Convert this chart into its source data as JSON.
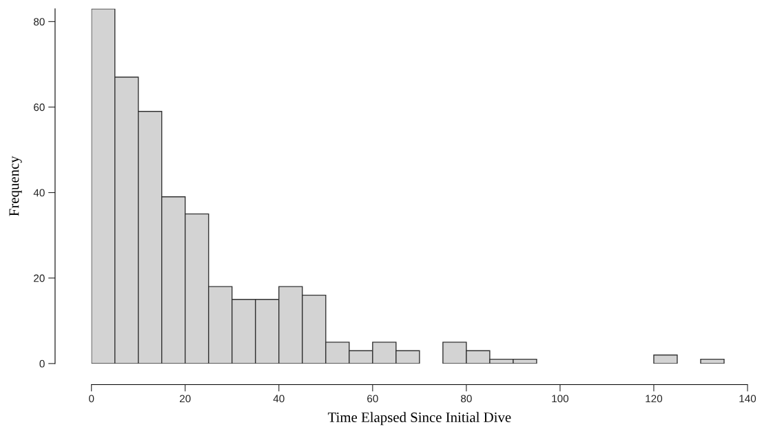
{
  "chart_data": {
    "type": "histogram",
    "xlabel": "Time Elapsed Since Initial Dive",
    "ylabel": "Frequency",
    "bins": [
      0,
      5,
      10,
      15,
      20,
      25,
      30,
      35,
      40,
      45,
      50,
      55,
      60,
      65,
      70,
      75,
      80,
      85,
      90,
      95,
      100,
      105,
      110,
      115,
      120,
      125,
      130,
      135
    ],
    "values": [
      83,
      67,
      59,
      39,
      35,
      18,
      15,
      15,
      18,
      16,
      5,
      3,
      5,
      3,
      0,
      5,
      3,
      1,
      1,
      0,
      0,
      0,
      0,
      0,
      2,
      0,
      1
    ],
    "color": "#d3d3d3",
    "xlim": [
      0,
      140
    ],
    "xticks": [
      0,
      20,
      40,
      60,
      80,
      100,
      120,
      140
    ],
    "ylim": [
      0,
      83
    ],
    "yticks": [
      0,
      20,
      40,
      60,
      80
    ],
    "grid": false
  }
}
